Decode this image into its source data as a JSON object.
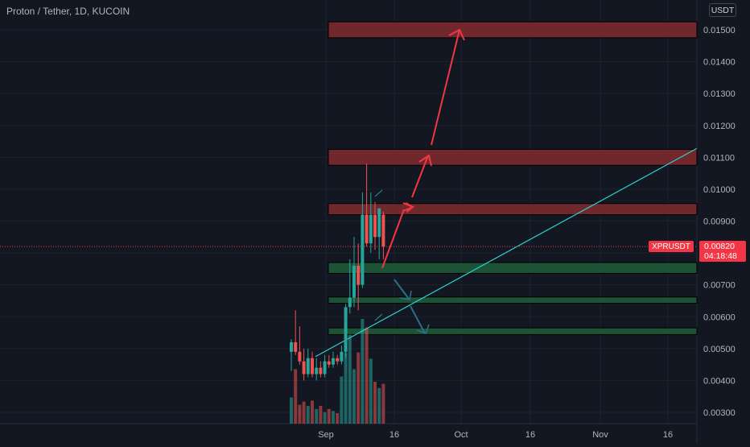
{
  "header": {
    "title": "Proton / Tether, 1D, KUCOIN",
    "currency": "USDT"
  },
  "last_price": {
    "symbol": "XPRUSDT",
    "price": "0.00820",
    "countdown": "04:18:48"
  },
  "colors": {
    "background": "#131722",
    "up": "#26a69a",
    "down": "#ef5350",
    "resistance_zone": "#7b2a2e",
    "support_zone": "#1e5a3a",
    "trendline": "#2fd0d0",
    "bull_arrow": "#f23645",
    "bear_arrow": "#2a6f8a",
    "grid": "#1e222d"
  },
  "chart_data": {
    "type": "candlestick",
    "title": "Proton / Tether, 1D, KUCOIN",
    "y_axis": {
      "ticks": [
        "0.01500",
        "0.01400",
        "0.01300",
        "0.01200",
        "0.01100",
        "0.01000",
        "0.00900",
        "0.00800",
        "0.00700",
        "0.00600",
        "0.00500",
        "0.00400",
        "0.00300"
      ],
      "range": [
        0.0026,
        0.0163
      ]
    },
    "x_axis": {
      "ticks": [
        "Sep",
        "16",
        "Oct",
        "16",
        "Nov",
        "16"
      ]
    },
    "candles": [
      {
        "open": 0.0049,
        "high": 0.0053,
        "low": 0.0043,
        "close": 0.0052
      },
      {
        "open": 0.0052,
        "high": 0.0062,
        "low": 0.0048,
        "close": 0.0049
      },
      {
        "open": 0.0049,
        "high": 0.0057,
        "low": 0.0045,
        "close": 0.0046
      },
      {
        "open": 0.0046,
        "high": 0.005,
        "low": 0.004,
        "close": 0.0042
      },
      {
        "open": 0.0042,
        "high": 0.005,
        "low": 0.0041,
        "close": 0.0047
      },
      {
        "open": 0.0047,
        "high": 0.0049,
        "low": 0.0041,
        "close": 0.0042
      },
      {
        "open": 0.0042,
        "high": 0.0047,
        "low": 0.004,
        "close": 0.0044
      },
      {
        "open": 0.0044,
        "high": 0.0046,
        "low": 0.0041,
        "close": 0.0042
      },
      {
        "open": 0.0042,
        "high": 0.0048,
        "low": 0.0041,
        "close": 0.0046
      },
      {
        "open": 0.0046,
        "high": 0.0048,
        "low": 0.0044,
        "close": 0.0045
      },
      {
        "open": 0.0045,
        "high": 0.0049,
        "low": 0.0044,
        "close": 0.0047
      },
      {
        "open": 0.0047,
        "high": 0.0048,
        "low": 0.0045,
        "close": 0.0046
      },
      {
        "open": 0.0046,
        "high": 0.0051,
        "low": 0.0045,
        "close": 0.0049
      },
      {
        "open": 0.0049,
        "high": 0.0064,
        "low": 0.0047,
        "close": 0.0063
      },
      {
        "open": 0.0063,
        "high": 0.0078,
        "low": 0.0061,
        "close": 0.0066
      },
      {
        "open": 0.0066,
        "high": 0.0085,
        "low": 0.0063,
        "close": 0.0076
      },
      {
        "open": 0.0076,
        "high": 0.0083,
        "low": 0.0062,
        "close": 0.007
      },
      {
        "open": 0.007,
        "high": 0.0099,
        "low": 0.0069,
        "close": 0.0092
      },
      {
        "open": 0.0092,
        "high": 0.0108,
        "low": 0.0082,
        "close": 0.0083
      },
      {
        "open": 0.0083,
        "high": 0.0099,
        "low": 0.008,
        "close": 0.0092
      },
      {
        "open": 0.0092,
        "high": 0.0096,
        "low": 0.0081,
        "close": 0.0085
      },
      {
        "open": 0.0085,
        "high": 0.0094,
        "low": 0.0078,
        "close": 0.0094
      },
      {
        "open": 0.0092,
        "high": 0.0093,
        "low": 0.0078,
        "close": 0.0082
      }
    ],
    "volume": [
      0.25,
      0.52,
      0.18,
      0.21,
      0.17,
      0.22,
      0.14,
      0.17,
      0.11,
      0.14,
      0.12,
      0.1,
      0.45,
      0.68,
      0.85,
      0.52,
      0.68,
      1.0,
      0.92,
      0.62,
      0.4,
      0.34,
      0.38
    ],
    "zones": [
      {
        "kind": "resistance",
        "low": 0.01475,
        "high": 0.01525
      },
      {
        "kind": "resistance",
        "low": 0.01075,
        "high": 0.01125
      },
      {
        "kind": "resistance",
        "low": 0.0092,
        "high": 0.00955
      },
      {
        "kind": "support",
        "low": 0.00736,
        "high": 0.0077
      },
      {
        "kind": "support",
        "low": 0.00642,
        "high": 0.00662
      },
      {
        "kind": "support",
        "low": 0.00544,
        "high": 0.00565
      }
    ]
  }
}
